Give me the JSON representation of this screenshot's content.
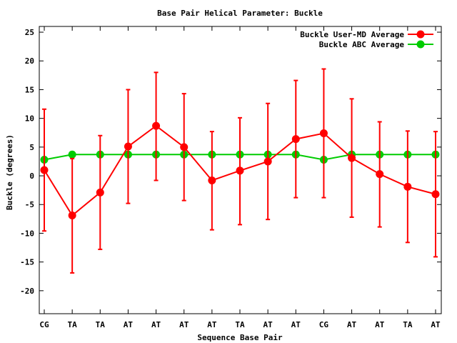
{
  "chart_data": {
    "type": "line",
    "title": "Base Pair Helical Parameter: Buckle",
    "xlabel": "Sequence Base Pair",
    "ylabel": "Buckle (degrees)",
    "ylim": [
      -24,
      26
    ],
    "yticks": [
      -20,
      -15,
      -10,
      -5,
      0,
      5,
      10,
      15,
      20,
      25
    ],
    "grid": false,
    "legend_position": "top-right",
    "categories": [
      "CG",
      "TA",
      "TA",
      "AT",
      "AT",
      "AT",
      "AT",
      "TA",
      "AT",
      "AT",
      "CG",
      "AT",
      "AT",
      "TA",
      "AT"
    ],
    "series": [
      {
        "name": "Buckle User-MD Average",
        "color": "#ff0000",
        "values": [
          1.0,
          -6.9,
          -2.9,
          5.1,
          8.7,
          5.0,
          -0.8,
          0.9,
          2.5,
          6.4,
          7.4,
          3.1,
          0.3,
          -1.9,
          -3.2
        ],
        "error_low": [
          -9.6,
          -16.9,
          -12.8,
          -4.8,
          -0.8,
          -4.3,
          -9.4,
          -8.5,
          -7.6,
          -3.8,
          -3.8,
          -7.2,
          -8.9,
          -11.6,
          -14.1
        ],
        "error_high": [
          11.6,
          3.0,
          7.0,
          15.0,
          18.0,
          14.3,
          7.7,
          10.1,
          12.6,
          16.6,
          18.6,
          13.4,
          9.4,
          7.8,
          7.7
        ]
      },
      {
        "name": "Buckle ABC Average",
        "color": "#00cc00",
        "values": [
          2.8,
          3.7,
          3.7,
          3.7,
          3.7,
          3.7,
          3.7,
          3.7,
          3.7,
          3.7,
          2.8,
          3.7,
          3.7,
          3.7,
          3.7
        ]
      }
    ]
  }
}
